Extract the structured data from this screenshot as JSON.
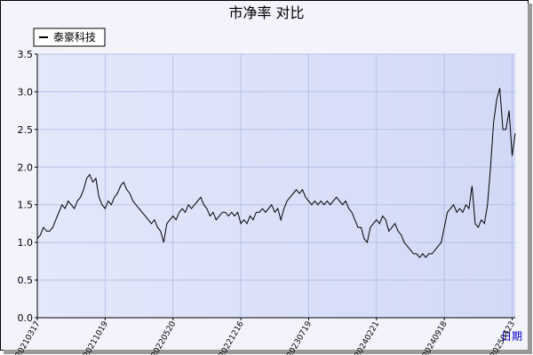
{
  "chart_data": {
    "type": "line",
    "title": "市净率  对比",
    "x_label": "日期",
    "categories": [
      "20210317",
      null,
      null,
      null,
      null,
      null,
      null,
      null,
      null,
      null,
      null,
      null,
      null,
      null,
      null,
      null,
      null,
      null,
      null,
      null,
      null,
      null,
      "20211019",
      null,
      null,
      null,
      null,
      null,
      null,
      null,
      null,
      null,
      null,
      null,
      null,
      null,
      null,
      null,
      null,
      null,
      null,
      null,
      null,
      null,
      "20220520",
      null,
      null,
      null,
      null,
      null,
      null,
      null,
      null,
      null,
      null,
      null,
      null,
      null,
      null,
      null,
      null,
      null,
      null,
      null,
      null,
      null,
      "20221216",
      null,
      null,
      null,
      null,
      null,
      null,
      null,
      null,
      null,
      null,
      null,
      null,
      null,
      null,
      null,
      null,
      null,
      null,
      null,
      null,
      null,
      "20230719",
      null,
      null,
      null,
      null,
      null,
      null,
      null,
      null,
      null,
      null,
      null,
      null,
      null,
      null,
      null,
      null,
      null,
      null,
      null,
      null,
      null,
      "20240221",
      null,
      null,
      null,
      null,
      null,
      null,
      null,
      null,
      null,
      null,
      null,
      null,
      null,
      null,
      null,
      null,
      null,
      null,
      null,
      null,
      null,
      "20240918",
      null,
      null,
      null,
      null,
      null,
      null,
      null,
      null,
      null,
      null,
      null,
      null,
      null,
      null,
      null,
      null,
      null,
      null,
      null,
      null,
      null,
      "20250423",
      null
    ],
    "series": [
      {
        "name": "泰豪科技",
        "color": "#000000",
        "values": [
          1.05,
          1.1,
          1.2,
          1.15,
          1.15,
          1.2,
          1.3,
          1.4,
          1.5,
          1.45,
          1.55,
          1.5,
          1.45,
          1.55,
          1.6,
          1.7,
          1.85,
          1.9,
          1.8,
          1.85,
          1.6,
          1.5,
          1.45,
          1.55,
          1.5,
          1.6,
          1.65,
          1.75,
          1.8,
          1.7,
          1.65,
          1.55,
          1.5,
          1.45,
          1.4,
          1.35,
          1.3,
          1.25,
          1.3,
          1.2,
          1.15,
          1.0,
          1.25,
          1.3,
          1.35,
          1.3,
          1.4,
          1.45,
          1.4,
          1.5,
          1.45,
          1.5,
          1.55,
          1.6,
          1.5,
          1.45,
          1.35,
          1.4,
          1.3,
          1.35,
          1.4,
          1.4,
          1.35,
          1.4,
          1.35,
          1.4,
          1.25,
          1.3,
          1.25,
          1.35,
          1.3,
          1.4,
          1.4,
          1.45,
          1.4,
          1.45,
          1.5,
          1.4,
          1.45,
          1.3,
          1.45,
          1.55,
          1.6,
          1.65,
          1.7,
          1.65,
          1.7,
          1.6,
          1.55,
          1.5,
          1.55,
          1.5,
          1.55,
          1.5,
          1.55,
          1.5,
          1.55,
          1.6,
          1.55,
          1.5,
          1.55,
          1.45,
          1.4,
          1.3,
          1.2,
          1.2,
          1.05,
          1.0,
          1.2,
          1.25,
          1.3,
          1.25,
          1.35,
          1.3,
          1.15,
          1.2,
          1.25,
          1.15,
          1.1,
          1.0,
          0.95,
          0.9,
          0.85,
          0.85,
          0.8,
          0.85,
          0.8,
          0.85,
          0.85,
          0.9,
          0.95,
          1.0,
          1.2,
          1.4,
          1.45,
          1.5,
          1.4,
          1.45,
          1.4,
          1.5,
          1.45,
          1.75,
          1.25,
          1.2,
          1.3,
          1.25,
          1.5,
          2.0,
          2.6,
          2.9,
          3.05,
          2.5,
          2.5,
          2.75,
          2.15,
          2.45
        ]
      }
    ],
    "ylim": [
      0,
      3.5
    ],
    "yticks": [
      {
        "value": 0,
        "label": "0.0"
      },
      0.5,
      {
        "value": 1,
        "label": "1.0"
      },
      1.5,
      {
        "value": 2,
        "label": "2.0"
      },
      2.5,
      {
        "value": 3,
        "label": "3.0"
      },
      3.5
    ],
    "grid": true,
    "legend": "upper left"
  }
}
